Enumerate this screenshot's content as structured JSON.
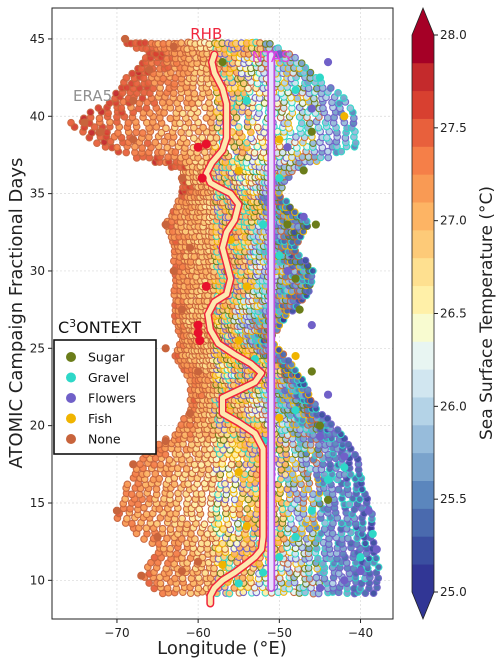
{
  "chart_data": {
    "type": "scatter",
    "title": "",
    "xlabel": "Longitude (°E)",
    "ylabel": "ATOMIC Campaign Fractional Days",
    "xlim": [
      -78,
      -36
    ],
    "ylim": [
      7.5,
      47
    ],
    "xticks": [
      -70,
      -60,
      -50,
      -40
    ],
    "yticks": [
      10,
      15,
      20,
      25,
      30,
      35,
      40,
      45
    ],
    "xtick_labels": [
      "−70",
      "−60",
      "−50",
      "−40"
    ],
    "ytick_labels": [
      "10",
      "15",
      "20",
      "25",
      "30",
      "35",
      "40",
      "45"
    ],
    "grid": true,
    "legend": {
      "placement": "center-left",
      "title_main": "C",
      "title_sup": "3",
      "title_rest": "ONTEXT",
      "entries": [
        {
          "label": "Sugar",
          "color": "#6b7d1a"
        },
        {
          "label": "Gravel",
          "color": "#2ed8c8"
        },
        {
          "label": "Flowers",
          "color": "#7060c8"
        },
        {
          "label": "Fish",
          "color": "#f0b400"
        },
        {
          "label": "None",
          "color": "#c8643c"
        }
      ]
    },
    "annotations": [
      {
        "text": "RHB",
        "color": "#f0243c",
        "x": -59,
        "y": 45
      },
      {
        "text": "NTAS",
        "color": "#e040e0",
        "x": -51,
        "y": 43.5
      },
      {
        "text": "ERA5",
        "color": "#909090",
        "x": -73,
        "y": 41
      }
    ],
    "colorbar": {
      "label": "Sea Surface Temperature (°C)",
      "min": 25.0,
      "max": 28.0,
      "ticks": [
        25.0,
        25.5,
        26.0,
        26.5,
        27.0,
        27.5,
        28.0
      ],
      "tick_labels": [
        "25.0",
        "25.5",
        "26.0",
        "26.5",
        "27.0",
        "27.5",
        "28.0"
      ],
      "colors": [
        "#313695",
        "#3a4ea0",
        "#4a6aae",
        "#5b86bd",
        "#7aa3cc",
        "#97bcdb",
        "#b4d3e7",
        "#d1e6f0",
        "#e8f5f2",
        "#f8fbd0",
        "#fff0a8",
        "#fee090",
        "#fdca78",
        "#fdb464",
        "#f99a54",
        "#f57f48",
        "#e8603c",
        "#d84030",
        "#c42a2c",
        "#a50026"
      ]
    },
    "series": [
      {
        "name": "Sugar",
        "points": [
          [
            -44,
            15.2
          ],
          [
            -45,
            20
          ],
          [
            -46,
            23.5
          ],
          [
            -47.5,
            27.5
          ],
          [
            -48,
            29.5
          ],
          [
            -49,
            33
          ],
          [
            -47,
            36.5
          ],
          [
            -45.5,
            33
          ],
          [
            -46,
            39
          ],
          [
            -57,
            43.5
          ]
        ]
      },
      {
        "name": "Gravel",
        "points": [
          [
            -55,
            9.8
          ],
          [
            -52,
            10.5
          ],
          [
            -50,
            11.5
          ],
          [
            -48,
            12.8
          ],
          [
            -46,
            14.5
          ],
          [
            -44,
            16.5
          ],
          [
            -42,
            17.3
          ],
          [
            -52,
            19
          ],
          [
            -48,
            21
          ],
          [
            -53,
            24.3
          ],
          [
            -50,
            31
          ],
          [
            -52,
            33
          ],
          [
            -50,
            36
          ],
          [
            -54,
            41
          ],
          [
            -48,
            41.7
          ],
          [
            -45,
            42.5
          ],
          [
            -40,
            11.5
          ],
          [
            -38.5,
            13
          ]
        ]
      },
      {
        "name": "Flowers",
        "points": [
          [
            -45,
            9.5
          ],
          [
            -42,
            10
          ],
          [
            -40,
            10.6
          ],
          [
            -38,
            12
          ],
          [
            -39,
            14.5
          ],
          [
            -42,
            18
          ],
          [
            -45,
            19.3
          ],
          [
            -44,
            22
          ],
          [
            -46,
            26.5
          ],
          [
            -49,
            30
          ],
          [
            -47,
            33.5
          ],
          [
            -49,
            38
          ],
          [
            -46,
            40.5
          ],
          [
            -44,
            43.5
          ],
          [
            -50,
            44
          ]
        ]
      },
      {
        "name": "Fish",
        "points": [
          [
            -57,
            11
          ],
          [
            -54,
            13.5
          ],
          [
            -55,
            17
          ],
          [
            -50,
            20.5
          ],
          [
            -48,
            24.5
          ],
          [
            -55,
            25.5
          ],
          [
            -54,
            29
          ],
          [
            -56,
            32
          ],
          [
            -55,
            36.5
          ],
          [
            -50,
            38.5
          ],
          [
            -42,
            40
          ]
        ]
      },
      {
        "name": "None",
        "points": [
          [
            -67,
            10.3
          ],
          [
            -62,
            10.6
          ],
          [
            -60,
            11.2
          ],
          [
            -65,
            12.8
          ],
          [
            -70,
            14.5
          ],
          [
            -68,
            17.5
          ],
          [
            -64,
            19
          ],
          [
            -61,
            20.8
          ],
          [
            -60,
            23.5
          ],
          [
            -64,
            25
          ],
          [
            -62,
            27.5
          ],
          [
            -63,
            30
          ],
          [
            -61,
            31.5
          ],
          [
            -64,
            33
          ],
          [
            -62,
            36
          ],
          [
            -68,
            38.5
          ],
          [
            -72,
            39
          ],
          [
            -74,
            39.6
          ],
          [
            -68,
            41
          ],
          [
            -66,
            43
          ],
          [
            -63,
            44.5
          ],
          [
            -69,
            45
          ]
        ]
      }
    ],
    "track_rhb": [
      [
        -58.5,
        8.5
      ],
      [
        -58.5,
        9
      ],
      [
        -58.0,
        9.5
      ],
      [
        -57.0,
        10
      ],
      [
        -55.5,
        10.5
      ],
      [
        -54.2,
        11
      ],
      [
        -53.0,
        11.5
      ],
      [
        -52.2,
        12
      ],
      [
        -52.0,
        12.8
      ],
      [
        -52.0,
        14
      ],
      [
        -52.0,
        15.5
      ],
      [
        -52.0,
        17
      ],
      [
        -52.0,
        18.5
      ],
      [
        -53.0,
        19.5
      ],
      [
        -55.0,
        20.2
      ],
      [
        -57.0,
        20.8
      ],
      [
        -57.0,
        21.8
      ],
      [
        -55.0,
        22.3
      ],
      [
        -53.0,
        22.8
      ],
      [
        -52.2,
        23.4
      ],
      [
        -53.5,
        24
      ],
      [
        -55.5,
        24.6
      ],
      [
        -57.5,
        25.3
      ],
      [
        -58.5,
        26.2
      ],
      [
        -58.8,
        27.2
      ],
      [
        -58.0,
        28
      ],
      [
        -56.5,
        28.5
      ],
      [
        -56.0,
        29.5
      ],
      [
        -56.5,
        30.5
      ],
      [
        -57.0,
        31.5
      ],
      [
        -56.5,
        32.5
      ],
      [
        -55.5,
        33.3
      ],
      [
        -55.0,
        34.3
      ],
      [
        -56.0,
        35
      ],
      [
        -57.5,
        35.4
      ],
      [
        -58.5,
        35.7
      ],
      [
        -59.0,
        36.3
      ],
      [
        -58.3,
        37
      ],
      [
        -57.0,
        37.8
      ],
      [
        -56.5,
        38.6
      ],
      [
        -56.5,
        39.5
      ],
      [
        -56.5,
        40.8
      ],
      [
        -57.0,
        41.8
      ],
      [
        -58.0,
        42.8
      ],
      [
        -58.3,
        43.5
      ],
      [
        -58.0,
        44
      ]
    ],
    "track_rhb_highlights": [
      [
        -60,
        26.5
      ],
      [
        -60,
        26
      ],
      [
        -59.8,
        25.5
      ],
      [
        -59,
        29
      ],
      [
        -59.5,
        36
      ],
      [
        -60,
        38
      ],
      [
        -59,
        38.2
      ]
    ],
    "track_ntas": [
      [
        -51,
        9.5
      ],
      [
        -51,
        44
      ]
    ],
    "surface_points_per_row": 32
  }
}
